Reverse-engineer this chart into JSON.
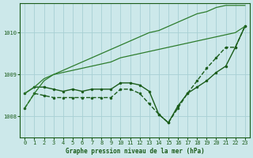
{
  "title": "Graphe pression niveau de la mer (hPa)",
  "background_color": "#cce8ea",
  "grid_color": "#a8d0d4",
  "line_color": "#1a5c1a",
  "x_ticks": [
    0,
    1,
    2,
    3,
    4,
    5,
    6,
    7,
    8,
    9,
    10,
    11,
    12,
    13,
    14,
    15,
    16,
    17,
    18,
    19,
    20,
    21,
    22,
    23
  ],
  "y_ticks": [
    1008,
    1009,
    1010
  ],
  "ylim": [
    1007.5,
    1010.7
  ],
  "xlim": [
    -0.5,
    23.5
  ],
  "series": [
    {
      "y": [
        1008.2,
        1008.55,
        1008.5,
        1008.45,
        1008.45,
        1008.45,
        1008.45,
        1008.45,
        1008.45,
        1008.45,
        1008.65,
        1008.65,
        1008.55,
        1008.3,
        1008.05,
        1007.85,
        1008.2,
        1008.55,
        1008.85,
        1009.15,
        1009.4,
        1009.65,
        1009.65,
        1010.15
      ],
      "color": "#1a5c1a",
      "lw": 1.0,
      "ls": "--",
      "marker": "o",
      "ms": 2.0
    },
    {
      "y": [
        1008.55,
        1008.7,
        1008.7,
        1008.65,
        1008.6,
        1008.65,
        1008.6,
        1008.65,
        1008.65,
        1008.65,
        1008.8,
        1008.8,
        1008.75,
        1008.6,
        1008.05,
        1007.85,
        1008.25,
        1008.55,
        1008.7,
        1008.85,
        1009.05,
        1009.2,
        1009.65,
        1010.15
      ],
      "color": "#1a5c1a",
      "lw": 1.0,
      "ls": "-",
      "marker": "o",
      "ms": 2.0
    },
    {
      "y": [
        1008.55,
        1008.7,
        1008.9,
        1009.0,
        1009.05,
        1009.1,
        1009.15,
        1009.2,
        1009.25,
        1009.3,
        1009.4,
        1009.45,
        1009.5,
        1009.55,
        1009.6,
        1009.65,
        1009.7,
        1009.75,
        1009.8,
        1009.85,
        1009.9,
        1009.95,
        1010.0,
        1010.15
      ],
      "color": "#2e7d2e",
      "lw": 0.9,
      "ls": "-",
      "marker": null,
      "ms": 0
    },
    {
      "y": [
        1008.2,
        1008.55,
        1008.85,
        1009.0,
        1009.1,
        1009.2,
        1009.3,
        1009.4,
        1009.5,
        1009.6,
        1009.7,
        1009.8,
        1009.9,
        1010.0,
        1010.05,
        1010.15,
        1010.25,
        1010.35,
        1010.45,
        1010.5,
        1010.6,
        1010.65,
        1010.65,
        1010.65
      ],
      "color": "#2e7d2e",
      "lw": 0.9,
      "ls": "-",
      "marker": null,
      "ms": 0
    }
  ],
  "xlabel_fontsize": 5.5,
  "tick_fontsize": 5.0
}
